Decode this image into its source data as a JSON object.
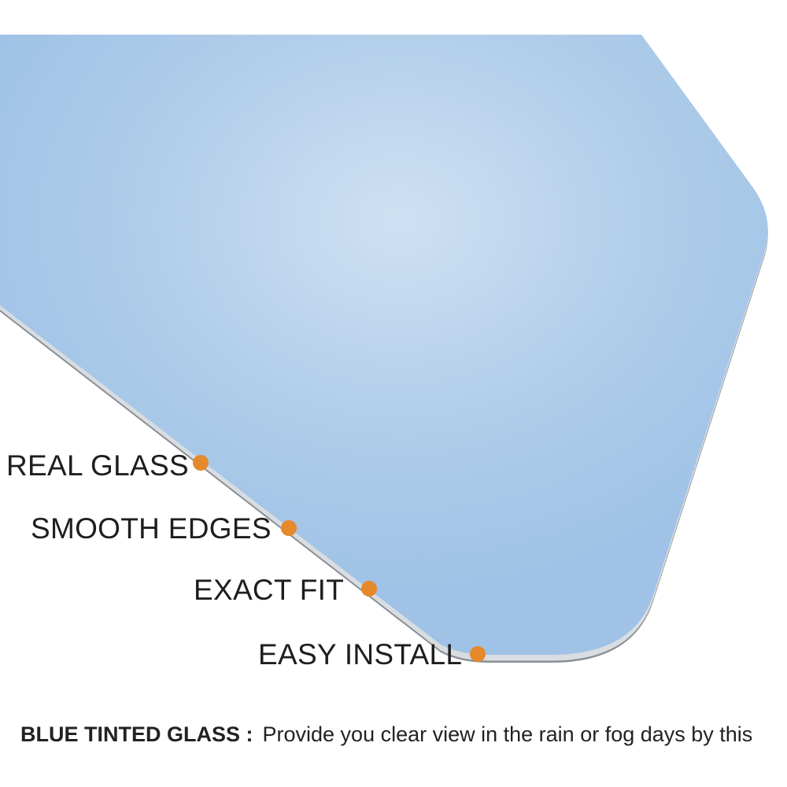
{
  "features": [
    {
      "label": "REAL GLASS"
    },
    {
      "label": "SMOOTH EDGES"
    },
    {
      "label": "EXACT FIT"
    },
    {
      "label": "EASY INSTALL"
    }
  ],
  "caption": {
    "heading": "BLUE TINTED GLASS :",
    "text": "Provide you clear view in the rain or fog days by this"
  },
  "colors": {
    "glass": "#a3c4e6",
    "glass_highlight": "#cfe1f3",
    "glass_edge": "#8a8f96",
    "dot": "#e5892a",
    "label_text": "#1e1e1e"
  }
}
